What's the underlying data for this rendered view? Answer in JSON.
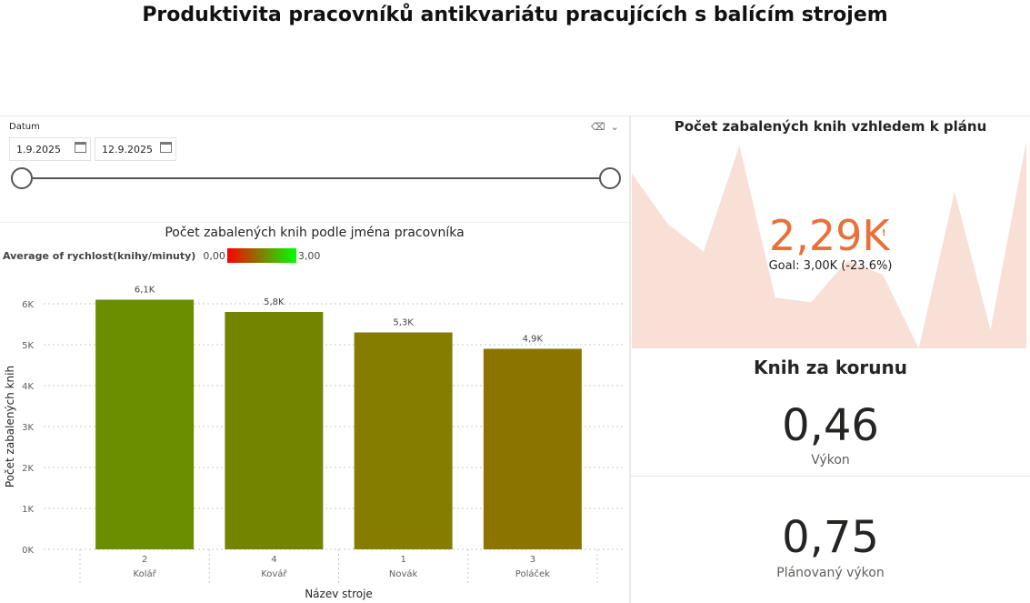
{
  "report": {
    "title": "Produktivita pracovníků antikvariátu pracujících s balícím strojem"
  },
  "date_slicer": {
    "label": "Datum",
    "start_date": "1.9.2025",
    "end_date": "12.9.2025",
    "start_fraction": 0.0,
    "end_fraction": 1.0
  },
  "legend": {
    "label": "Average of rychlost(knihy/minuty)",
    "min": "0,00",
    "max": "3,00",
    "min_color": "#ff0000",
    "max_color": "#00ff00"
  },
  "chart_data": [
    {
      "type": "bar",
      "title": "Počet zabalených knih podle jména pracovníka",
      "xlabel": "Název stroje",
      "ylabel": "Počet zabalených knih",
      "categories": [
        "2",
        "4",
        "1",
        "3"
      ],
      "category_sublabels": [
        "Kolář",
        "Kovář",
        "Novák",
        "Poláček"
      ],
      "values": [
        6100,
        5800,
        5300,
        4900
      ],
      "data_labels": [
        "6,1K",
        "5,8K",
        "5,3K",
        "4,9K"
      ],
      "bar_colors": [
        "#6b8e00",
        "#738500",
        "#847d00",
        "#8b7500"
      ],
      "ylim": [
        0,
        6000
      ],
      "yticks": [
        0,
        1000,
        2000,
        3000,
        4000,
        5000,
        6000
      ],
      "ytick_labels": [
        "0K",
        "1K",
        "2K",
        "3K",
        "4K",
        "5K",
        "6K"
      ],
      "grid": true,
      "legend_position": "top-left"
    },
    {
      "type": "area",
      "title": "Počet zabalených knih vzhledem k plánu",
      "series": [
        {
          "values": [
            190,
            135,
            105,
            220,
            55,
            50,
            95,
            80,
            0,
            170,
            20,
            225
          ]
        }
      ],
      "ylim": [
        0,
        230
      ],
      "grid": false,
      "color": "#f9e0d6",
      "kpi_value": "2,29K",
      "kpi_indicator": "!",
      "kpi_goal": "Goal: 3,00K (-23.6%)",
      "kpi_color": "#e8703a"
    }
  ],
  "cards": {
    "title": "Knih za korunu",
    "performance_value": "0,46",
    "performance_label": "Výkon",
    "planned_value": "0,75",
    "planned_label": "Plánovaný výkon"
  }
}
